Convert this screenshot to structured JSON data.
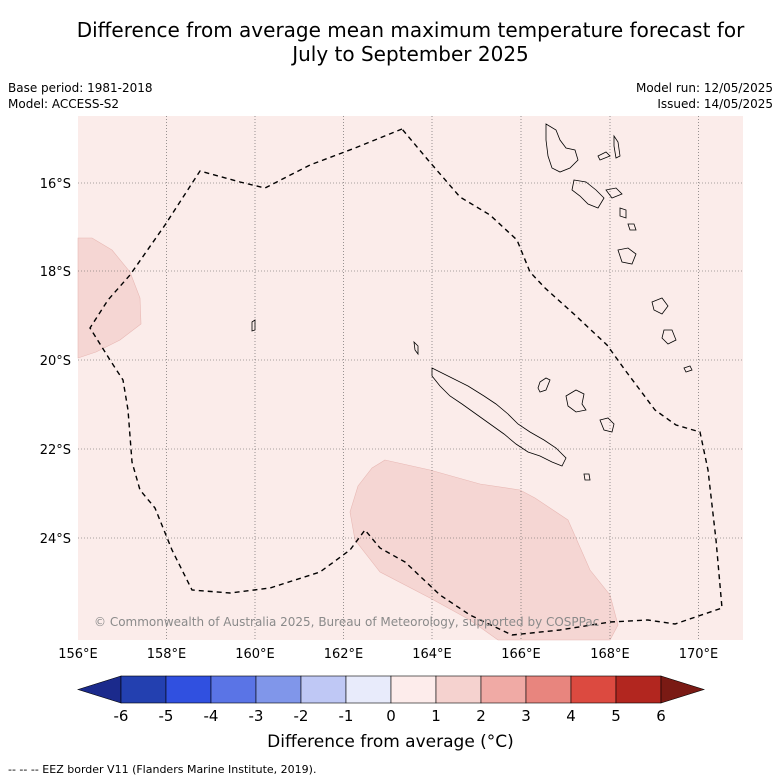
{
  "title_line1": "Difference from average mean maximum temperature forecast for",
  "title_line2": "July to September 2025",
  "meta": {
    "base_period": "Base period: 1981-2018",
    "model": "Model: ACCESS-S2",
    "model_run": "Model run: 12/05/2025",
    "issued": "Issued: 14/05/2025"
  },
  "map": {
    "lon_labels": [
      "156°E",
      "158°E",
      "160°E",
      "162°E",
      "164°E",
      "166°E",
      "168°E",
      "170°E"
    ],
    "lat_labels": [
      "16°S",
      "18°S",
      "20°S",
      "22°S",
      "24°S"
    ],
    "copyright": "© Commonwealth of Australia 2025, Bureau of Meteorology, supported by COSPPac",
    "background_color": "#fbecea",
    "anomaly_patch_color": "#f5d6d3"
  },
  "colorbar": {
    "ticks": [
      "-6",
      "-5",
      "-4",
      "-3",
      "-2",
      "-1",
      "0",
      "1",
      "2",
      "3",
      "4",
      "5",
      "6"
    ],
    "colors": [
      "#1b2a8c",
      "#2340b0",
      "#3050e0",
      "#5a74e6",
      "#8096ea",
      "#bfc8f5",
      "#e8ebfb",
      "#fdeceb",
      "#f5d2cf",
      "#f0aaa5",
      "#e8857e",
      "#dc4a40",
      "#b2261f",
      "#7a1a14"
    ],
    "label": "Difference from average (°C)"
  },
  "footnote": "--  --  -- EEZ border V11 (Flanders Marine Institute, 2019)."
}
